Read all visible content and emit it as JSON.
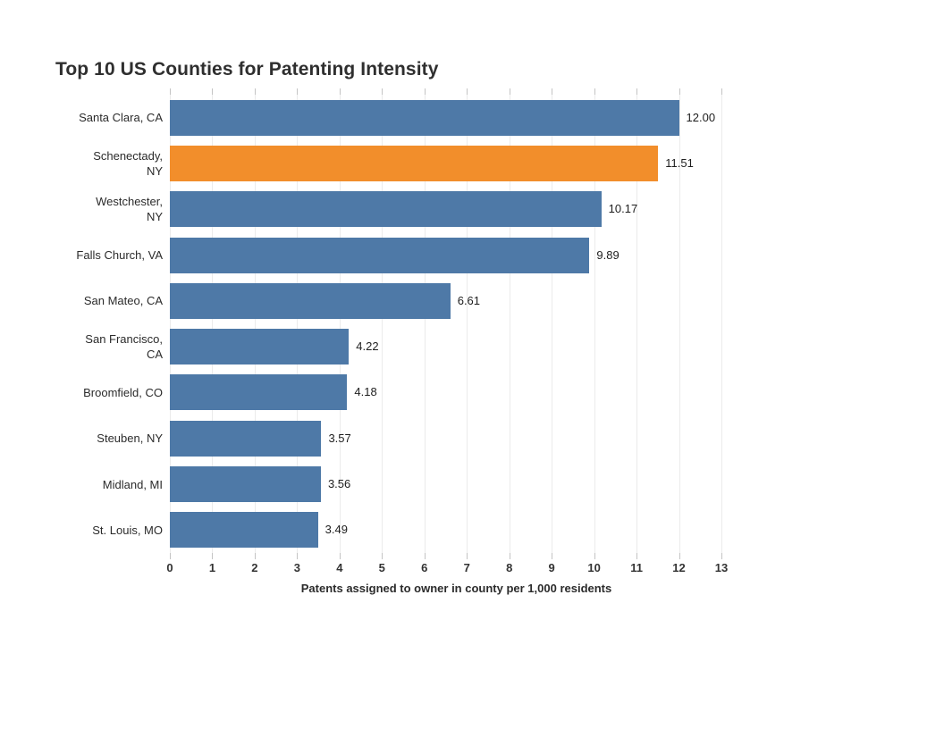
{
  "page": {
    "background": "#ffffff"
  },
  "chart_data": {
    "type": "bar",
    "orientation": "horizontal",
    "title": "Top 10 US Counties for Patenting Intensity",
    "xlabel": "Patents assigned to owner in county per 1,000 residents",
    "ylabel": "",
    "categories": [
      "Santa Clara, CA",
      "Schenectady, NY",
      "Westchester, NY",
      "Falls Church, VA",
      "San Mateo, CA",
      "San Francisco, CA",
      "Broomfield, CO",
      "Steuben, NY",
      "Midland, MI",
      "St. Louis, MO"
    ],
    "category_display_lines": [
      [
        "Santa Clara, CA"
      ],
      [
        "Schenectady,",
        "NY"
      ],
      [
        "Westchester,",
        "NY"
      ],
      [
        "Falls Church, VA"
      ],
      [
        "San Mateo, CA"
      ],
      [
        "San Francisco,",
        "CA"
      ],
      [
        "Broomfield, CO"
      ],
      [
        "Steuben, NY"
      ],
      [
        "Midland, MI"
      ],
      [
        "St. Louis, MO"
      ]
    ],
    "values": [
      12.0,
      11.51,
      10.17,
      9.89,
      6.61,
      4.22,
      4.18,
      3.57,
      3.56,
      3.49
    ],
    "value_labels": [
      "12.00",
      "11.51",
      "10.17",
      "9.89",
      "6.61",
      "4.22",
      "4.18",
      "3.57",
      "3.56",
      "3.49"
    ],
    "highlight_index": 1,
    "highlighted_category": "Schenectady, NY",
    "colors": {
      "bar": "#4E79A7",
      "highlight": "#F28E2B",
      "gridline": "#EBEBEB",
      "tick": "#C4C4C4",
      "text": "#2B2B2B"
    },
    "xlim": [
      0,
      13.5
    ],
    "x_ticks": [
      0,
      1,
      2,
      3,
      4,
      5,
      6,
      7,
      8,
      9,
      10,
      11,
      12,
      13
    ],
    "grid": true,
    "legend": "none"
  }
}
